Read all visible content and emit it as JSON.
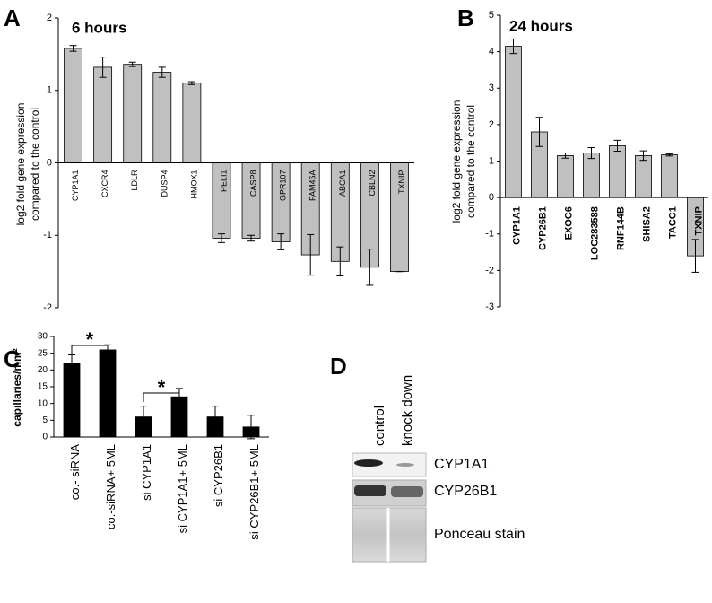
{
  "chart_data": [
    {
      "type": "bar",
      "label": "A",
      "title": "6 hours",
      "ylabel": [
        "log2 fold gene expression",
        "compared to the control"
      ],
      "categories": [
        "CYP1A1",
        "CXCR4",
        "LDLR",
        "DUSP4",
        "HMOX1",
        "PELI1",
        "CASP8",
        "GPR107",
        "FAM46A",
        "ABCA1",
        "CBLN2",
        "TXNIP"
      ],
      "values": [
        1.58,
        1.32,
        1.36,
        1.25,
        1.1,
        -1.04,
        -1.04,
        -1.09,
        -1.27,
        -1.36,
        -1.44,
        -1.5
      ],
      "errors": [
        0.04,
        0.14,
        0.03,
        0.07,
        0.02,
        0.06,
        0.04,
        0.11,
        0.28,
        0.2,
        0.25,
        0
      ],
      "color": "#c0c0c0",
      "ylim": [
        -2,
        2
      ],
      "yticks": [
        -2,
        -1,
        0,
        1,
        2
      ]
    },
    {
      "type": "bar",
      "label": "B",
      "title": "24 hours",
      "ylabel": [
        "log2 fold gene expression",
        "compared to the control"
      ],
      "categories": [
        "CYP1A1",
        "CYP26B1",
        "EXOC6",
        "LOC283588",
        "RNF144B",
        "SHISA2",
        "TACC1",
        "TXNIP"
      ],
      "values": [
        4.15,
        1.8,
        1.15,
        1.22,
        1.42,
        1.15,
        1.17,
        -1.6
      ],
      "errors": [
        0.2,
        0.4,
        0.07,
        0.15,
        0.15,
        0.13,
        0.03,
        0.45
      ],
      "color": "#c0c0c0",
      "ylim": [
        -3,
        5
      ],
      "yticks": [
        -3,
        -2,
        -1,
        0,
        1,
        2,
        3,
        4,
        5
      ]
    },
    {
      "type": "bar",
      "label": "C",
      "ylabel": [
        "capillaries/mm²"
      ],
      "categories": [
        "co.- siRNA",
        "co.-siRNA+ 5ML",
        "si CYP1A1",
        "si CYP1A1+ 5ML",
        "si CYP26B1",
        "si CYP26B1+ 5ML"
      ],
      "values": [
        22,
        26,
        6,
        12,
        6,
        3
      ],
      "errors": [
        2.5,
        1.5,
        3.2,
        2.5,
        3.2,
        3.5
      ],
      "annotations": [
        "*",
        "*"
      ],
      "color": "#000000",
      "ylim": [
        0,
        30
      ],
      "yticks": [
        0,
        5,
        10,
        15,
        20,
        25,
        30
      ]
    }
  ],
  "blot": {
    "label": "D",
    "lanes": [
      "control",
      "knock down"
    ],
    "bands": [
      "CYP1A1",
      "CYP26B1",
      "Ponceau stain"
    ]
  }
}
